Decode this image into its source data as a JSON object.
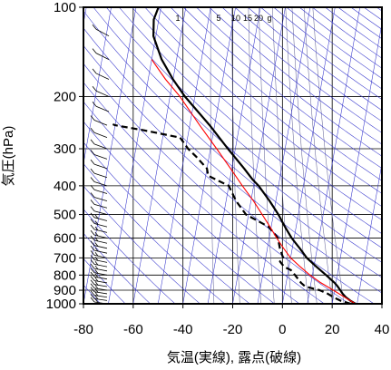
{
  "chart_data": {
    "type": "line",
    "title": "",
    "xlabel": "気温(実線), 露点(破線)",
    "ylabel": "気圧(hPa)",
    "xlim": [
      -80,
      40
    ],
    "ylim": [
      1000,
      100
    ],
    "yscale": "log",
    "skew": true,
    "x_ticks": [
      -80,
      -60,
      -40,
      -20,
      0,
      20,
      40
    ],
    "x_tick_labels": [
      "-80",
      "-60",
      "-40",
      "-20",
      "0",
      "20",
      "40"
    ],
    "y_ticks": [
      100,
      200,
      300,
      400,
      500,
      600,
      700,
      800,
      900,
      1000
    ],
    "y_tick_labels": [
      "100",
      "200",
      "300",
      "400",
      "500",
      "600",
      "700",
      "800",
      "900",
      "1000"
    ],
    "mixing_ratio_labels": [
      "1",
      "5",
      "10",
      "15",
      "20",
      "g"
    ],
    "grid": true,
    "colors": {
      "temperature": "#000000",
      "dewpoint": "#000000",
      "parcel": "#ff0000",
      "adiabats": "#3333cc",
      "mixing_ratio": "#666699",
      "grid": "#000000",
      "wind": "#000000"
    },
    "series": [
      {
        "line": "solid",
        "pressure": [
          1000,
          975,
          950,
          925,
          900,
          875,
          850,
          800,
          750,
          700,
          650,
          600,
          550,
          500,
          450,
          400,
          380,
          350,
          300,
          250,
          200,
          175,
          150,
          125,
          110,
          100
        ],
        "values": [
          29.4,
          27.0,
          25.0,
          23.5,
          22.3,
          21.0,
          19.5,
          15.5,
          11.0,
          6.5,
          3.0,
          -1.0,
          -4.5,
          -8.0,
          -12.5,
          -18.0,
          -21.0,
          -25.0,
          -33.0,
          -42.0,
          -54.0,
          -60.0,
          -66.0,
          -71.0,
          -72.0,
          -71.0
        ]
      },
      {
        "line": "dashed",
        "pressure": [
          1000,
          975,
          950,
          925,
          900,
          875,
          850,
          800,
          770,
          750,
          720,
          700,
          650,
          600,
          550,
          500,
          450,
          400,
          370,
          350,
          320,
          300,
          275,
          260,
          250,
          248
        ],
        "values": [
          27.5,
          23.0,
          20.0,
          17.5,
          14.0,
          8.0,
          6.0,
          3.0,
          1.0,
          -2.0,
          -4.0,
          -3.0,
          -5.0,
          -6.5,
          -11.0,
          -21.0,
          -26.0,
          -30.0,
          -39.0,
          -40.0,
          -45.0,
          -49.0,
          -53.0,
          -68.0,
          -80.0,
          -81.0
        ]
      },
      {
        "line": "solid",
        "pressure": [
          1000,
          950,
          900,
          850,
          800,
          750,
          700,
          650,
          600,
          550,
          500,
          450,
          400,
          350,
          300,
          250,
          200,
          175,
          150
        ],
        "values": [
          29.4,
          24.5,
          19.5,
          14.0,
          9.0,
          4.5,
          0.0,
          -3.5,
          -7.0,
          -10.5,
          -14.5,
          -19.0,
          -24.5,
          -30.5,
          -37.5,
          -46.0,
          -56.0,
          -63.0,
          -70.0
        ]
      }
    ]
  }
}
